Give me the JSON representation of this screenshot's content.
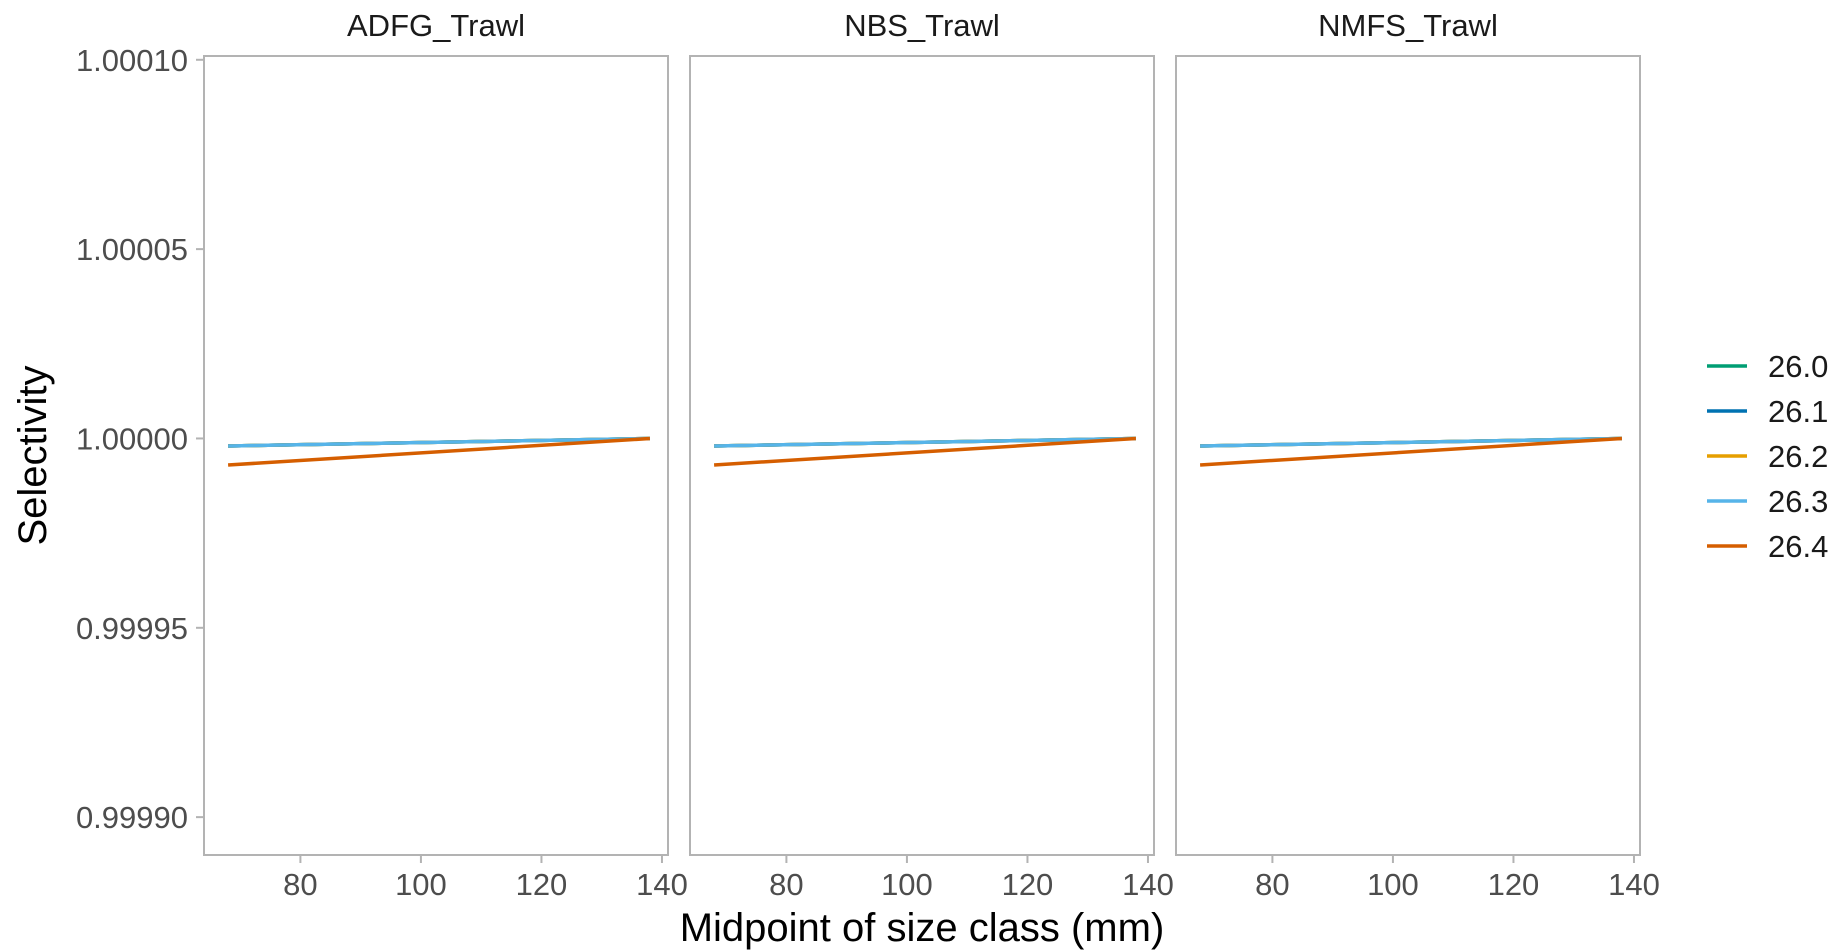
{
  "chart_data": {
    "type": "line",
    "xlabel": "Midpoint of size class (mm)",
    "ylabel": "Selectivity",
    "xlim": [
      64,
      141
    ],
    "ylim": [
      0.99989,
      1.000101
    ],
    "x_ticks": [
      80,
      100,
      120,
      140
    ],
    "x_tick_labels": [
      "80",
      "100",
      "120",
      "140"
    ],
    "y_ticks": [
      1.0001,
      1.00005,
      1.0,
      0.99995,
      0.9999
    ],
    "y_tick_labels": [
      "1.00010",
      "1.00005",
      "1.00000",
      "0.99995",
      "0.99990"
    ],
    "grid": false,
    "legend_position": "right",
    "panels": [
      {
        "title": "ADFG_Trawl"
      },
      {
        "title": "NBS_Trawl"
      },
      {
        "title": "NMFS_Trawl"
      }
    ],
    "series": [
      {
        "name": "26.0",
        "color": "#009E73",
        "x": [
          68,
          138
        ],
        "y": [
          0.999998,
          1.0
        ]
      },
      {
        "name": "26.1",
        "color": "#0072B2",
        "x": [
          68,
          138
        ],
        "y": [
          0.999998,
          1.0
        ]
      },
      {
        "name": "26.2",
        "color": "#E69F00",
        "x": [
          68,
          138
        ],
        "y": [
          0.999998,
          1.0
        ]
      },
      {
        "name": "26.3",
        "color": "#56B4E9",
        "x": [
          68,
          138
        ],
        "y": [
          0.999998,
          1.0
        ]
      },
      {
        "name": "26.4",
        "color": "#D55E00",
        "x": [
          68,
          138
        ],
        "y": [
          0.999993,
          1.0
        ]
      }
    ]
  }
}
